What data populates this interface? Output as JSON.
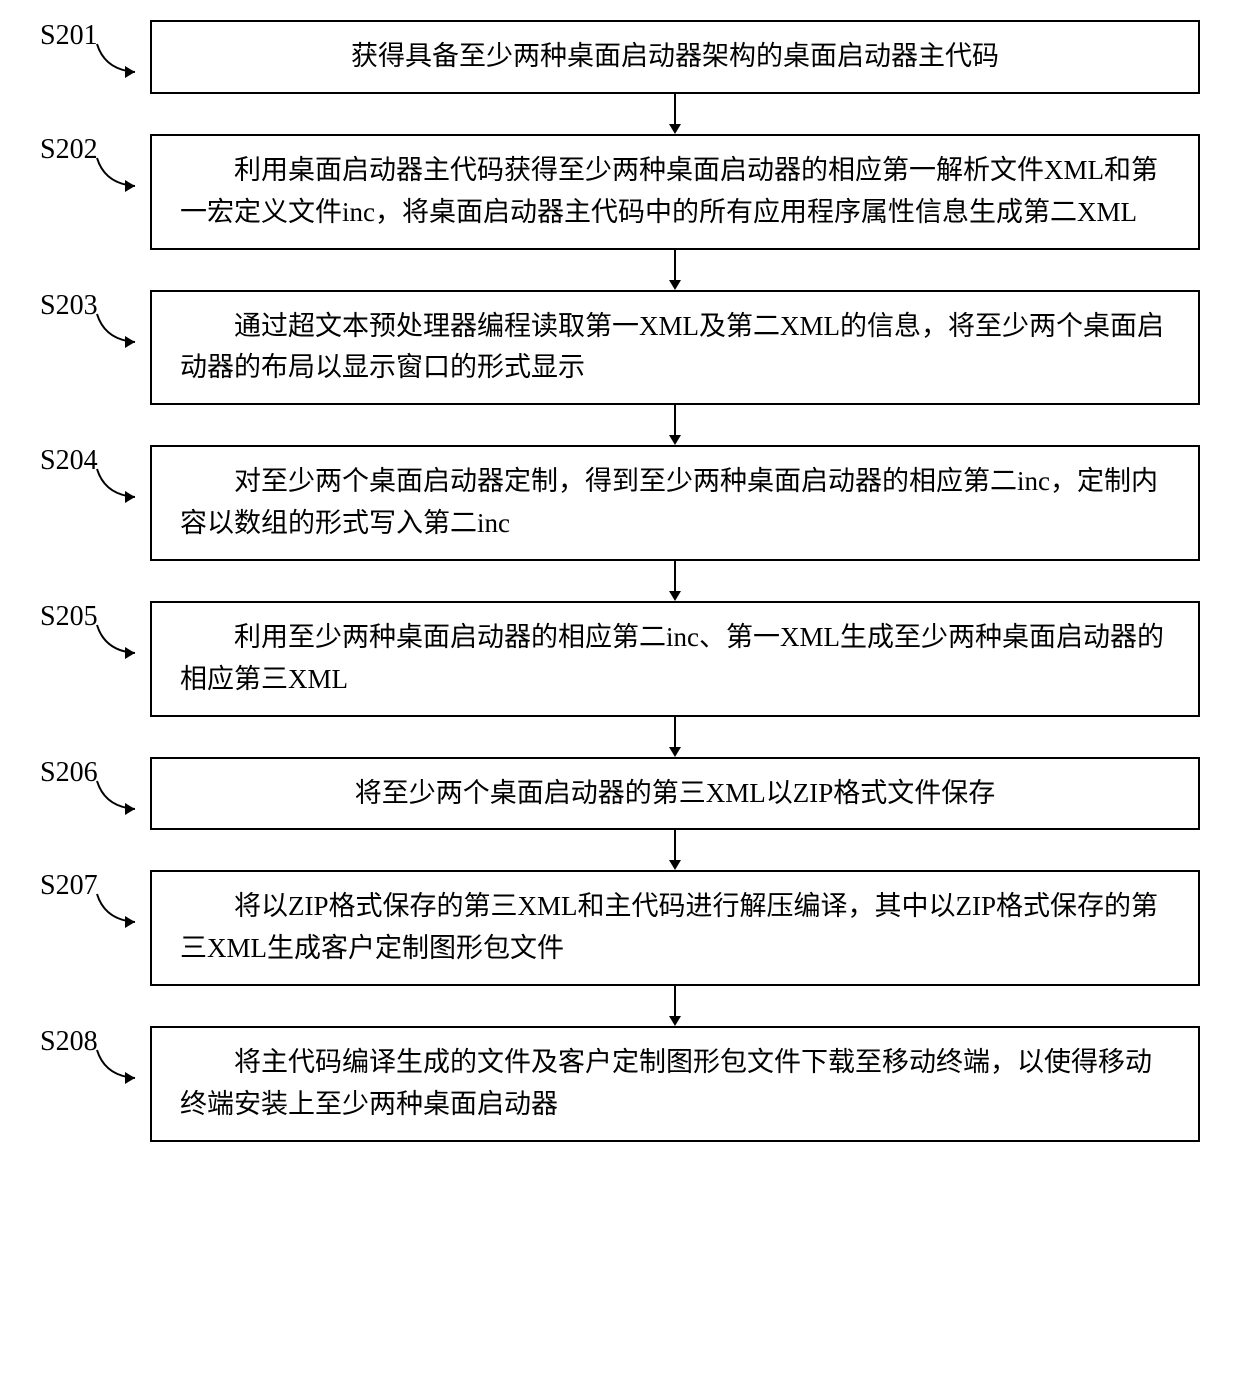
{
  "colors": {
    "background": "#ffffff",
    "line": "#000000",
    "text": "#000000"
  },
  "typography": {
    "font_family": "SimSun",
    "label_fontsize": 28,
    "box_fontsize": 27,
    "line_height": 1.55
  },
  "layout": {
    "box_border_width": 2,
    "arrow_length": 40,
    "total_width": 1240,
    "total_height": 1375
  },
  "steps": [
    {
      "id": "S201",
      "text": "获得具备至少两种桌面启动器架构的桌面启动器主代码",
      "single": true
    },
    {
      "id": "S202",
      "text": "　　利用桌面启动器主代码获得至少两种桌面启动器的相应第一解析文件XML和第一宏定义文件inc，将桌面启动器主代码中的所有应用程序属性信息生成第二XML",
      "single": false
    },
    {
      "id": "S203",
      "text": "　　通过超文本预处理器编程读取第一XML及第二XML的信息，将至少两个桌面启动器的布局以显示窗口的形式显示",
      "single": false
    },
    {
      "id": "S204",
      "text": "　　对至少两个桌面启动器定制，得到至少两种桌面启动器的相应第二inc，定制内容以数组的形式写入第二inc",
      "single": false
    },
    {
      "id": "S205",
      "text": "　　利用至少两种桌面启动器的相应第二inc、第一XML生成至少两种桌面启动器的相应第三XML",
      "single": false
    },
    {
      "id": "S206",
      "text": "将至少两个桌面启动器的第三XML以ZIP格式文件保存",
      "single": true
    },
    {
      "id": "S207",
      "text": "　　将以ZIP格式保存的第三XML和主代码进行解压编译，其中以ZIP格式保存的第三XML生成客户定制图形包文件",
      "single": false
    },
    {
      "id": "S208",
      "text": "　　将主代码编译生成的文件及客户定制图形包文件下载至移动终端，以使得移动终端安装上至少两种桌面启动器",
      "single": false
    }
  ]
}
